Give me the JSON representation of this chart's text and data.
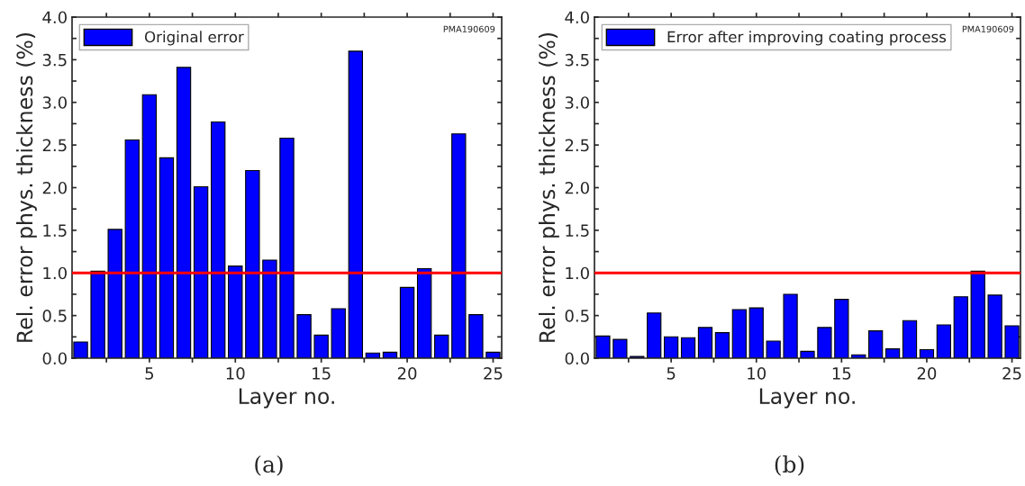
{
  "chart_data": [
    {
      "type": "bar",
      "xlabel": "Layer no.",
      "ylabel": "Rel. error phys. thickness (%)",
      "x": [
        1,
        2,
        3,
        4,
        5,
        6,
        7,
        8,
        9,
        10,
        11,
        12,
        13,
        14,
        15,
        16,
        17,
        18,
        19,
        20,
        21,
        22,
        23,
        24,
        25
      ],
      "series": [
        {
          "name": "Original error",
          "color": "#0000ff",
          "values": [
            0.19,
            1.02,
            1.51,
            2.56,
            3.09,
            2.35,
            3.41,
            2.01,
            2.77,
            1.08,
            2.2,
            1.15,
            2.58,
            0.51,
            0.27,
            0.58,
            3.6,
            0.06,
            0.07,
            0.83,
            1.05,
            0.27,
            2.63,
            0.51,
            0.07
          ]
        }
      ],
      "xlim": [
        0.5,
        25.5
      ],
      "xticks": [
        {
          "value": 2.5,
          "label": null
        },
        5,
        {
          "value": 7.5,
          "label": null
        },
        10,
        {
          "value": 12.5,
          "label": null
        },
        15,
        {
          "value": 17.5,
          "label": null
        },
        20,
        {
          "value": 22.5,
          "label": null
        },
        25
      ],
      "ylim": [
        0,
        4.0
      ],
      "yticks": [
        {
          "value": 0,
          "label": "0.0"
        },
        {
          "value": 0.25,
          "label": null
        },
        0.5,
        {
          "value": 0.75,
          "label": null
        },
        {
          "value": 1,
          "label": "1.0"
        },
        {
          "value": 1.25,
          "label": null
        },
        1.5,
        {
          "value": 1.75,
          "label": null
        },
        {
          "value": 2,
          "label": "2.0"
        },
        {
          "value": 2.25,
          "label": null
        },
        2.5,
        {
          "value": 2.75,
          "label": null
        },
        {
          "value": 3,
          "label": "3.0"
        },
        {
          "value": 3.25,
          "label": null
        },
        3.5,
        {
          "value": 3.75,
          "label": null
        },
        {
          "value": 4,
          "label": "4.0"
        }
      ],
      "ref_lines": [
        {
          "axis": "y",
          "value": 1.0,
          "color": "#ff0000"
        }
      ],
      "annotations": [
        "PMA190609",
        "(a)"
      ],
      "legend": "top left",
      "grid": false
    },
    {
      "type": "bar",
      "xlabel": "Layer no.",
      "ylabel": "Rel. error phys. thickness (%)",
      "x": [
        1,
        2,
        3,
        4,
        5,
        6,
        7,
        8,
        9,
        10,
        11,
        12,
        13,
        14,
        15,
        16,
        17,
        18,
        19,
        20,
        21,
        22,
        23,
        24,
        25
      ],
      "series": [
        {
          "name": "Error after improving coating process",
          "color": "#0000ff",
          "values": [
            0.26,
            0.22,
            0.02,
            0.53,
            0.25,
            0.24,
            0.36,
            0.3,
            0.57,
            0.59,
            0.2,
            0.75,
            0.08,
            0.36,
            0.69,
            0.04,
            0.32,
            0.11,
            0.44,
            0.1,
            0.39,
            0.72,
            1.02,
            0.74,
            0.38
          ]
        }
      ],
      "xlim": [
        0.5,
        25.5
      ],
      "xticks": [
        {
          "value": 2.5,
          "label": null
        },
        5,
        {
          "value": 7.5,
          "label": null
        },
        10,
        {
          "value": 12.5,
          "label": null
        },
        15,
        {
          "value": 17.5,
          "label": null
        },
        20,
        {
          "value": 22.5,
          "label": null
        },
        25
      ],
      "ylim": [
        0,
        4.0
      ],
      "yticks": [
        {
          "value": 0,
          "label": "0.0"
        },
        {
          "value": 0.25,
          "label": null
        },
        0.5,
        {
          "value": 0.75,
          "label": null
        },
        {
          "value": 1,
          "label": "1.0"
        },
        {
          "value": 1.25,
          "label": null
        },
        1.5,
        {
          "value": 1.75,
          "label": null
        },
        {
          "value": 2,
          "label": "2.0"
        },
        {
          "value": 2.25,
          "label": null
        },
        2.5,
        {
          "value": 2.75,
          "label": null
        },
        {
          "value": 3,
          "label": "3.0"
        },
        {
          "value": 3.25,
          "label": null
        },
        3.5,
        {
          "value": 3.75,
          "label": null
        },
        {
          "value": 4,
          "label": "4.0"
        }
      ],
      "ref_lines": [
        {
          "axis": "y",
          "value": 1.0,
          "color": "#ff0000"
        }
      ],
      "annotations": [
        "PMA190609",
        "(b)"
      ],
      "legend": "top left",
      "grid": false
    }
  ]
}
